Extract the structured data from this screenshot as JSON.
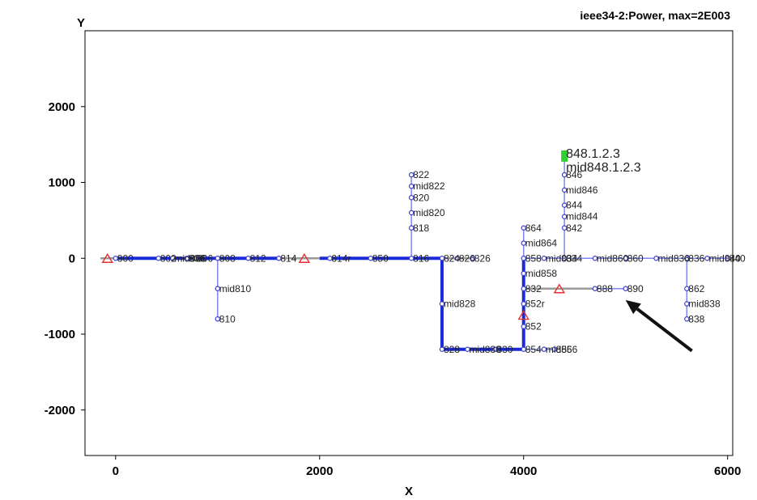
{
  "chart_data": {
    "type": "scatter",
    "title": "ieee34-2:Power, max=2E003",
    "xlabel": "X",
    "ylabel": "Y",
    "xlim": [
      -300,
      6050
    ],
    "ylim": [
      -2600,
      3000
    ],
    "xticks": [
      0,
      2000,
      4000,
      6000
    ],
    "yticks": [
      2000,
      1000,
      0,
      -1000,
      -2000
    ],
    "grid": false,
    "colors": {
      "heavy_line": "#1a2bdc",
      "light_line": "#7f86ef",
      "gray_line": "#9a9a9a",
      "node": "#3b3fd0",
      "regulator": "#e23030",
      "highlight": "#2fd02f",
      "arrow": "#111111"
    },
    "lines": [
      {
        "from": [
          -150,
          0
        ],
        "to": [
          0,
          0
        ],
        "style": "gray"
      },
      {
        "from": [
          0,
          0
        ],
        "to": [
          1600,
          0
        ],
        "style": "heavy"
      },
      {
        "from": [
          1600,
          0
        ],
        "to": [
          2000,
          0
        ],
        "style": "gray"
      },
      {
        "from": [
          2000,
          0
        ],
        "to": [
          3200,
          0
        ],
        "style": "heavy"
      },
      {
        "from": [
          3200,
          0
        ],
        "to": [
          3500,
          0
        ],
        "style": "gray"
      },
      {
        "from": [
          3200,
          0
        ],
        "to": [
          3200,
          -1200
        ],
        "style": "heavy"
      },
      {
        "from": [
          3200,
          -1200
        ],
        "to": [
          4000,
          -1200
        ],
        "style": "heavy"
      },
      {
        "from": [
          4000,
          -1200
        ],
        "to": [
          4000,
          0
        ],
        "style": "heavy"
      },
      {
        "from": [
          4000,
          -1200
        ],
        "to": [
          4300,
          -1200
        ],
        "style": "light"
      },
      {
        "from": [
          4000,
          0
        ],
        "to": [
          4000,
          400
        ],
        "style": "light"
      },
      {
        "from": [
          4000,
          0
        ],
        "to": [
          4400,
          0
        ],
        "style": "light"
      },
      {
        "from": [
          4000,
          -400
        ],
        "to": [
          4700,
          -400
        ],
        "style": "gray"
      },
      {
        "from": [
          4700,
          -400
        ],
        "to": [
          5000,
          -400
        ],
        "style": "light"
      },
      {
        "from": [
          4400,
          0
        ],
        "to": [
          6000,
          0
        ],
        "style": "light"
      },
      {
        "from": [
          4400,
          0
        ],
        "to": [
          4400,
          1300
        ],
        "style": "light"
      },
      {
        "from": [
          1000,
          0
        ],
        "to": [
          1000,
          -800
        ],
        "style": "light"
      },
      {
        "from": [
          2900,
          0
        ],
        "to": [
          2900,
          1100
        ],
        "style": "light"
      },
      {
        "from": [
          5600,
          0
        ],
        "to": [
          5600,
          -800
        ],
        "style": "light"
      }
    ],
    "nodes": [
      {
        "x": 0,
        "y": 0,
        "label": "800"
      },
      {
        "x": 420,
        "y": 0,
        "label": "802"
      },
      {
        "x": 560,
        "y": 0,
        "label": "mid806"
      },
      {
        "x": 700,
        "y": 0,
        "label": "806"
      },
      {
        "x": 780,
        "y": 0,
        "label": "806"
      },
      {
        "x": 1000,
        "y": 0,
        "label": "808"
      },
      {
        "x": 1300,
        "y": 0,
        "label": "812"
      },
      {
        "x": 1600,
        "y": 0,
        "label": "814"
      },
      {
        "x": 2100,
        "y": 0,
        "label": "814r"
      },
      {
        "x": 2500,
        "y": 0,
        "label": "850"
      },
      {
        "x": 2900,
        "y": 0,
        "label": "816"
      },
      {
        "x": 3200,
        "y": 0,
        "label": "824"
      },
      {
        "x": 3350,
        "y": 0,
        "label": "826"
      },
      {
        "x": 3500,
        "y": 0,
        "label": "826"
      },
      {
        "x": 1000,
        "y": -400,
        "label": "mid810"
      },
      {
        "x": 1000,
        "y": -800,
        "label": "810"
      },
      {
        "x": 2900,
        "y": 400,
        "label": "818"
      },
      {
        "x": 2900,
        "y": 600,
        "label": "mid820"
      },
      {
        "x": 2900,
        "y": 800,
        "label": "820"
      },
      {
        "x": 2900,
        "y": 950,
        "label": "mid822"
      },
      {
        "x": 2900,
        "y": 1100,
        "label": "822"
      },
      {
        "x": 3200,
        "y": -600,
        "label": "mid828"
      },
      {
        "x": 3200,
        "y": -1200,
        "label": "828"
      },
      {
        "x": 3450,
        "y": -1200,
        "label": "mid830"
      },
      {
        "x": 3720,
        "y": -1200,
        "label": "830"
      },
      {
        "x": 4000,
        "y": -1200,
        "label": "854"
      },
      {
        "x": 4200,
        "y": -1200,
        "label": "mid856"
      },
      {
        "x": 4300,
        "y": -1200,
        "label": "856"
      },
      {
        "x": 4000,
        "y": 0,
        "label": "858"
      },
      {
        "x": 4000,
        "y": -200,
        "label": "mid858"
      },
      {
        "x": 4000,
        "y": -400,
        "label": "832"
      },
      {
        "x": 4000,
        "y": -600,
        "label": "852r"
      },
      {
        "x": 4000,
        "y": -900,
        "label": "852"
      },
      {
        "x": 4000,
        "y": 200,
        "label": "mid864"
      },
      {
        "x": 4000,
        "y": 400,
        "label": "864"
      },
      {
        "x": 4200,
        "y": 0,
        "label": "mid834"
      },
      {
        "x": 4400,
        "y": 0,
        "label": "834"
      },
      {
        "x": 4700,
        "y": -400,
        "label": "888"
      },
      {
        "x": 5000,
        "y": -400,
        "label": "890"
      },
      {
        "x": 4700,
        "y": 0,
        "label": "mid860"
      },
      {
        "x": 5000,
        "y": 0,
        "label": "860"
      },
      {
        "x": 5300,
        "y": 0,
        "label": "mid836"
      },
      {
        "x": 5600,
        "y": 0,
        "label": "836"
      },
      {
        "x": 5800,
        "y": 0,
        "label": "mid840"
      },
      {
        "x": 6000,
        "y": 0,
        "label": "840"
      },
      {
        "x": 5600,
        "y": -400,
        "label": "862"
      },
      {
        "x": 5600,
        "y": -600,
        "label": "mid838"
      },
      {
        "x": 5600,
        "y": -800,
        "label": "838"
      },
      {
        "x": 4400,
        "y": 400,
        "label": "842"
      },
      {
        "x": 4400,
        "y": 550,
        "label": "mid844"
      },
      {
        "x": 4400,
        "y": 700,
        "label": "844"
      },
      {
        "x": 4400,
        "y": 900,
        "label": "mid846"
      },
      {
        "x": 4400,
        "y": 1100,
        "label": "846"
      }
    ],
    "highlight_labels": [
      {
        "x": 4400,
        "y": 1380,
        "label": "848.1.2.3"
      },
      {
        "x": 4400,
        "y": 1200,
        "label": "mid848.1.2.3"
      }
    ],
    "regulators": [
      {
        "x": -80,
        "y": 0
      },
      {
        "x": 1850,
        "y": 0
      },
      {
        "x": 4000,
        "y": -750
      },
      {
        "x": 4350,
        "y": -400
      }
    ],
    "annotation_arrow": {
      "from": [
        5650,
        -1220
      ],
      "to": [
        5000,
        -550
      ]
    }
  }
}
